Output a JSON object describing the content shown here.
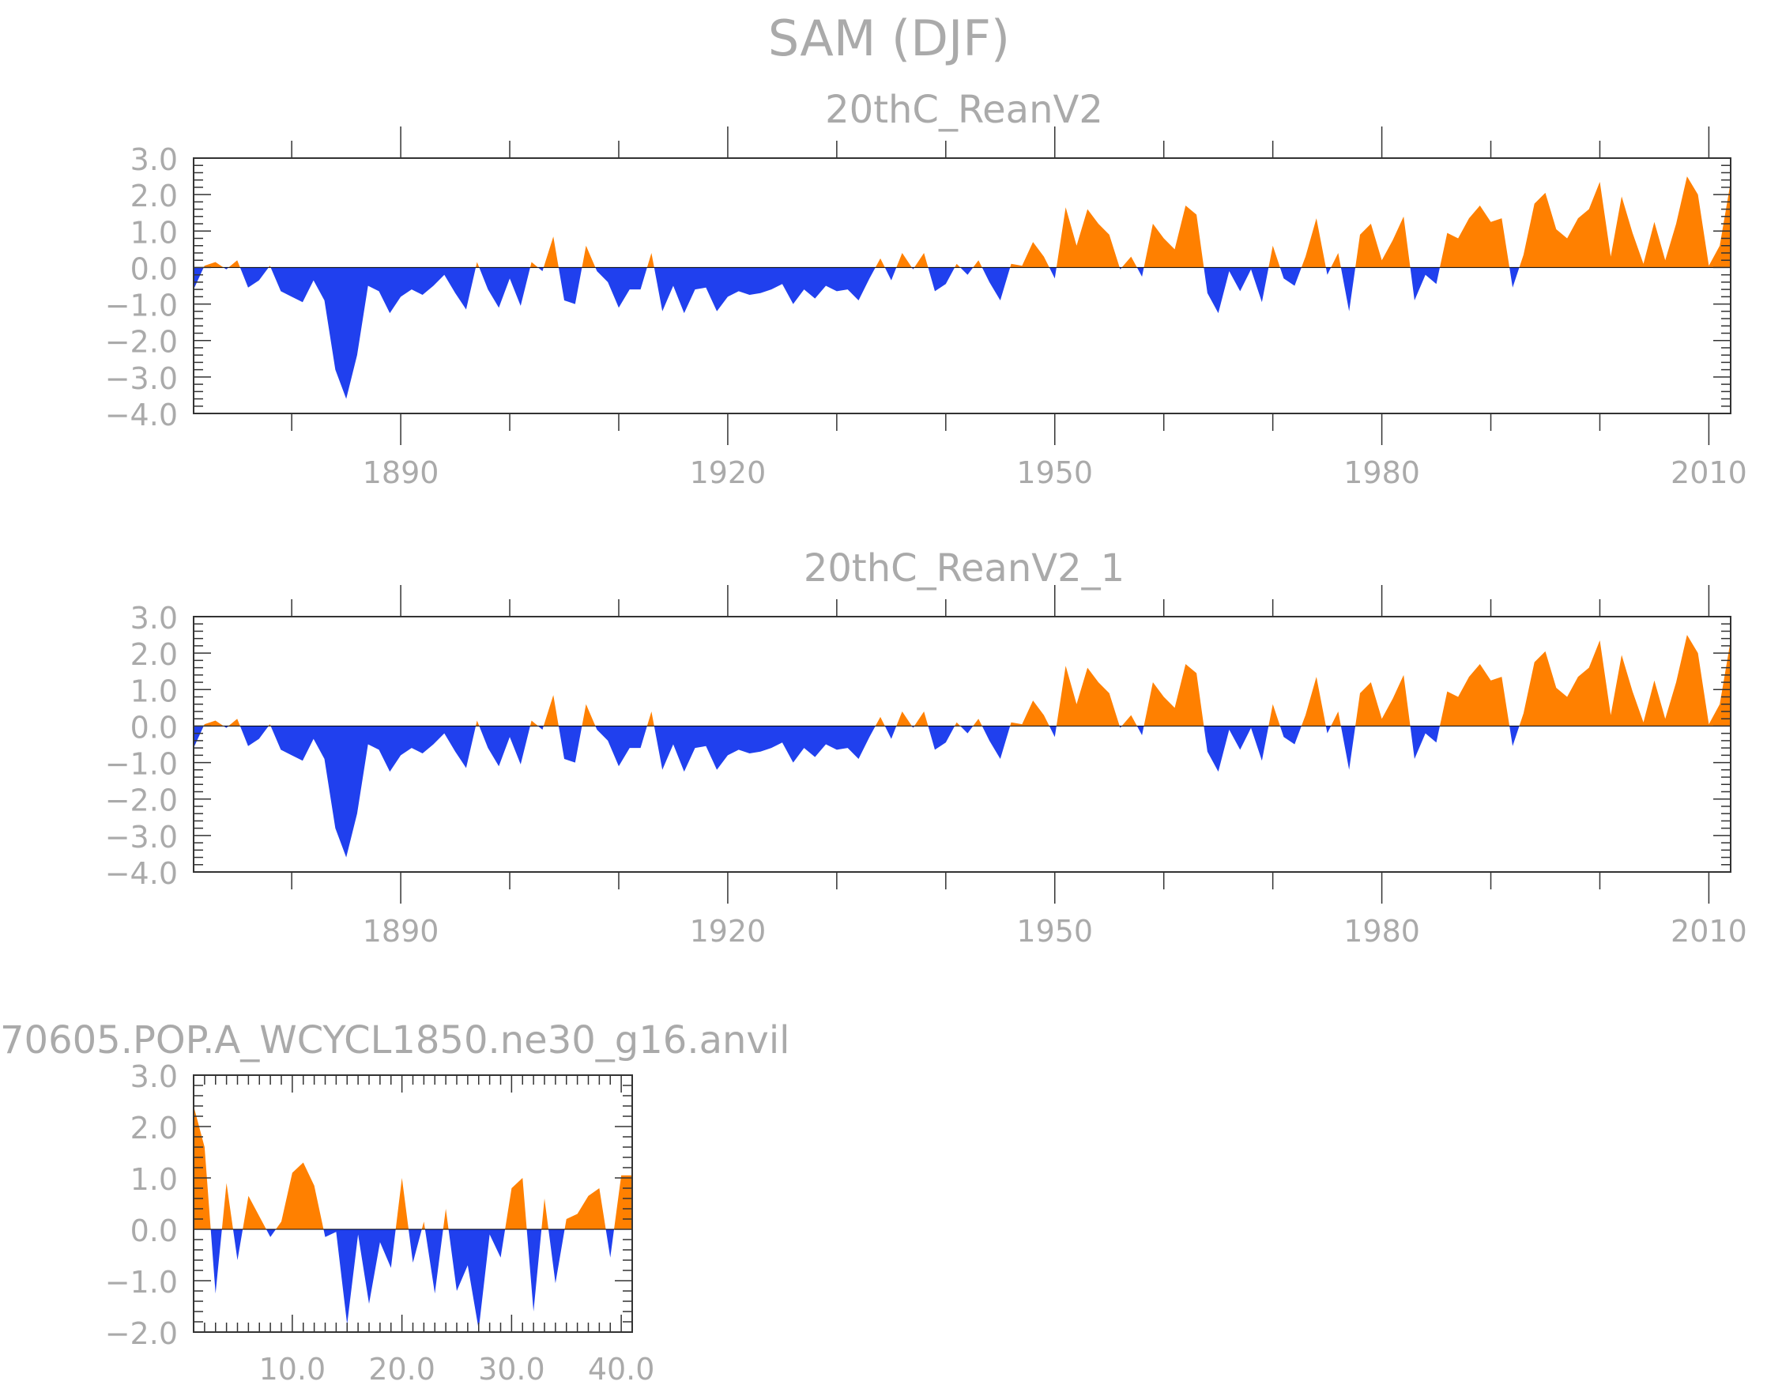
{
  "title": "SAM (DJF)",
  "colors": {
    "positive": "#ff8000",
    "negative": "#2040ee",
    "axis": "#333333",
    "text": "#aaaaaa"
  },
  "chart_data": [
    {
      "type": "area",
      "title": "20thC_ReanV2",
      "xlabel": "",
      "ylabel": "",
      "xlim": [
        1871,
        2012
      ],
      "ylim": [
        -4.0,
        3.0
      ],
      "xticks": [
        1890,
        1920,
        1950,
        1980,
        2010
      ],
      "yticks": [
        "3.0",
        "2.0",
        "1.0",
        "0.0",
        "−1.0",
        "−2.0",
        "−3.0",
        "−4.0"
      ],
      "fill_above_zero": "positive",
      "fill_below_zero": "negative",
      "x": [
        1871,
        1872,
        1873,
        1874,
        1875,
        1876,
        1877,
        1878,
        1879,
        1880,
        1881,
        1882,
        1883,
        1884,
        1885,
        1886,
        1887,
        1888,
        1889,
        1890,
        1891,
        1892,
        1893,
        1894,
        1895,
        1896,
        1897,
        1898,
        1899,
        1900,
        1901,
        1902,
        1903,
        1904,
        1905,
        1906,
        1907,
        1908,
        1909,
        1910,
        1911,
        1912,
        1913,
        1914,
        1915,
        1916,
        1917,
        1918,
        1919,
        1920,
        1921,
        1922,
        1923,
        1924,
        1925,
        1926,
        1927,
        1928,
        1929,
        1930,
        1931,
        1932,
        1933,
        1934,
        1935,
        1936,
        1937,
        1938,
        1939,
        1940,
        1941,
        1942,
        1943,
        1944,
        1945,
        1946,
        1947,
        1948,
        1949,
        1950,
        1951,
        1952,
        1953,
        1954,
        1955,
        1956,
        1957,
        1958,
        1959,
        1960,
        1961,
        1962,
        1963,
        1964,
        1965,
        1966,
        1967,
        1968,
        1969,
        1970,
        1971,
        1972,
        1973,
        1974,
        1975,
        1976,
        1977,
        1978,
        1979,
        1980,
        1981,
        1982,
        1983,
        1984,
        1985,
        1986,
        1987,
        1988,
        1989,
        1990,
        1991,
        1992,
        1993,
        1994,
        1995,
        1996,
        1997,
        1998,
        1999,
        2000,
        2001,
        2002,
        2003,
        2004,
        2005,
        2006,
        2007,
        2008,
        2009,
        2010,
        2011,
        2012
      ],
      "values": [
        -0.6,
        0.05,
        0.15,
        -0.05,
        0.2,
        -0.55,
        -0.35,
        0.05,
        -0.65,
        -0.8,
        -0.95,
        -0.35,
        -0.9,
        -2.8,
        -3.6,
        -2.4,
        -0.5,
        -0.65,
        -1.25,
        -0.8,
        -0.6,
        -0.75,
        -0.5,
        -0.2,
        -0.7,
        -1.15,
        0.15,
        -0.6,
        -1.1,
        -0.3,
        -1.05,
        0.15,
        -0.1,
        0.85,
        -0.9,
        -1.0,
        0.6,
        -0.1,
        -0.4,
        -1.1,
        -0.6,
        -0.6,
        0.4,
        -1.2,
        -0.5,
        -1.25,
        -0.6,
        -0.55,
        -1.2,
        -0.8,
        -0.65,
        -0.75,
        -0.7,
        -0.6,
        -0.45,
        -1.0,
        -0.6,
        -0.85,
        -0.5,
        -0.65,
        -0.6,
        -0.9,
        -0.3,
        0.25,
        -0.35,
        0.4,
        -0.05,
        0.4,
        -0.65,
        -0.45,
        0.1,
        -0.2,
        0.2,
        -0.4,
        -0.9,
        0.1,
        0.05,
        0.7,
        0.3,
        -0.3,
        1.65,
        0.6,
        1.6,
        1.2,
        0.9,
        -0.05,
        0.3,
        -0.25,
        1.2,
        0.8,
        0.5,
        1.7,
        1.45,
        -0.7,
        -1.25,
        -0.1,
        -0.65,
        -0.05,
        -0.95,
        0.6,
        -0.3,
        -0.5,
        0.3,
        1.35,
        -0.2,
        0.4,
        -1.2,
        0.9,
        1.2,
        0.2,
        0.75,
        1.4,
        -0.9,
        -0.2,
        -0.45,
        0.95,
        0.8,
        1.35,
        1.7,
        1.25,
        1.35,
        -0.55,
        0.35,
        1.75,
        2.05,
        1.05,
        0.8,
        1.35,
        1.6,
        2.35,
        0.3,
        1.95,
        0.95,
        0.1,
        1.25,
        0.2,
        1.2,
        2.5,
        2.0,
        0.05,
        0.6,
        2.35
      ]
    },
    {
      "type": "area",
      "title": "20thC_ReanV2_1",
      "xlabel": "",
      "ylabel": "",
      "xlim": [
        1871,
        2012
      ],
      "ylim": [
        -4.0,
        3.0
      ],
      "xticks": [
        1890,
        1920,
        1950,
        1980,
        2010
      ],
      "yticks": [
        "3.0",
        "2.0",
        "1.0",
        "0.0",
        "−1.0",
        "−2.0",
        "−3.0",
        "−4.0"
      ],
      "fill_above_zero": "positive",
      "fill_below_zero": "negative",
      "x": [
        1871,
        1872,
        1873,
        1874,
        1875,
        1876,
        1877,
        1878,
        1879,
        1880,
        1881,
        1882,
        1883,
        1884,
        1885,
        1886,
        1887,
        1888,
        1889,
        1890,
        1891,
        1892,
        1893,
        1894,
        1895,
        1896,
        1897,
        1898,
        1899,
        1900,
        1901,
        1902,
        1903,
        1904,
        1905,
        1906,
        1907,
        1908,
        1909,
        1910,
        1911,
        1912,
        1913,
        1914,
        1915,
        1916,
        1917,
        1918,
        1919,
        1920,
        1921,
        1922,
        1923,
        1924,
        1925,
        1926,
        1927,
        1928,
        1929,
        1930,
        1931,
        1932,
        1933,
        1934,
        1935,
        1936,
        1937,
        1938,
        1939,
        1940,
        1941,
        1942,
        1943,
        1944,
        1945,
        1946,
        1947,
        1948,
        1949,
        1950,
        1951,
        1952,
        1953,
        1954,
        1955,
        1956,
        1957,
        1958,
        1959,
        1960,
        1961,
        1962,
        1963,
        1964,
        1965,
        1966,
        1967,
        1968,
        1969,
        1970,
        1971,
        1972,
        1973,
        1974,
        1975,
        1976,
        1977,
        1978,
        1979,
        1980,
        1981,
        1982,
        1983,
        1984,
        1985,
        1986,
        1987,
        1988,
        1989,
        1990,
        1991,
        1992,
        1993,
        1994,
        1995,
        1996,
        1997,
        1998,
        1999,
        2000,
        2001,
        2002,
        2003,
        2004,
        2005,
        2006,
        2007,
        2008,
        2009,
        2010,
        2011,
        2012
      ],
      "values": [
        -0.6,
        0.05,
        0.15,
        -0.05,
        0.2,
        -0.55,
        -0.35,
        0.05,
        -0.65,
        -0.8,
        -0.95,
        -0.35,
        -0.9,
        -2.8,
        -3.6,
        -2.4,
        -0.5,
        -0.65,
        -1.25,
        -0.8,
        -0.6,
        -0.75,
        -0.5,
        -0.2,
        -0.7,
        -1.15,
        0.15,
        -0.6,
        -1.1,
        -0.3,
        -1.05,
        0.15,
        -0.1,
        0.85,
        -0.9,
        -1.0,
        0.6,
        -0.1,
        -0.4,
        -1.1,
        -0.6,
        -0.6,
        0.4,
        -1.2,
        -0.5,
        -1.25,
        -0.6,
        -0.55,
        -1.2,
        -0.8,
        -0.65,
        -0.75,
        -0.7,
        -0.6,
        -0.45,
        -1.0,
        -0.6,
        -0.85,
        -0.5,
        -0.65,
        -0.6,
        -0.9,
        -0.3,
        0.25,
        -0.35,
        0.4,
        -0.05,
        0.4,
        -0.65,
        -0.45,
        0.1,
        -0.2,
        0.2,
        -0.4,
        -0.9,
        0.1,
        0.05,
        0.7,
        0.3,
        -0.3,
        1.65,
        0.6,
        1.6,
        1.2,
        0.9,
        -0.05,
        0.3,
        -0.25,
        1.2,
        0.8,
        0.5,
        1.7,
        1.45,
        -0.7,
        -1.25,
        -0.1,
        -0.65,
        -0.05,
        -0.95,
        0.6,
        -0.3,
        -0.5,
        0.3,
        1.35,
        -0.2,
        0.4,
        -1.2,
        0.9,
        1.2,
        0.2,
        0.75,
        1.4,
        -0.9,
        -0.2,
        -0.45,
        0.95,
        0.8,
        1.35,
        1.7,
        1.25,
        1.35,
        -0.55,
        0.35,
        1.75,
        2.05,
        1.05,
        0.8,
        1.35,
        1.6,
        2.35,
        0.3,
        1.95,
        0.95,
        0.1,
        1.25,
        0.2,
        1.2,
        2.5,
        2.0,
        0.05,
        0.6,
        2.35
      ]
    },
    {
      "type": "area",
      "title": "70605.POP.A_WCYCL1850.ne30_g16.anvil",
      "xlabel": "",
      "ylabel": "",
      "xlim": [
        1,
        41
      ],
      "ylim": [
        -2.0,
        3.0
      ],
      "xticks": [
        10.0,
        20.0,
        30.0,
        40.0
      ],
      "xtick_labels": [
        "10.0",
        "20.0",
        "30.0",
        "40.0"
      ],
      "yticks": [
        "3.0",
        "2.0",
        "1.0",
        "0.0",
        "−1.0",
        "−2.0"
      ],
      "fill_above_zero": "positive",
      "fill_below_zero": "negative",
      "x": [
        1,
        2,
        3,
        4,
        5,
        6,
        7,
        8,
        9,
        10,
        11,
        12,
        13,
        14,
        15,
        16,
        17,
        18,
        19,
        20,
        21,
        22,
        23,
        24,
        25,
        26,
        27,
        28,
        29,
        30,
        31,
        32,
        33,
        34,
        35,
        36,
        37,
        38,
        39,
        40,
        41
      ],
      "values": [
        2.4,
        1.6,
        -1.25,
        0.9,
        -0.6,
        0.65,
        0.25,
        -0.15,
        0.15,
        1.1,
        1.3,
        0.85,
        -0.15,
        -0.05,
        -1.85,
        -0.1,
        -1.45,
        -0.25,
        -0.75,
        1.0,
        -0.65,
        0.15,
        -1.25,
        0.4,
        -1.2,
        -0.7,
        -1.95,
        -0.1,
        -0.55,
        0.8,
        1.0,
        -1.6,
        0.6,
        -1.05,
        0.2,
        0.3,
        0.65,
        0.8,
        -0.55,
        1.05,
        1.05
      ]
    }
  ]
}
